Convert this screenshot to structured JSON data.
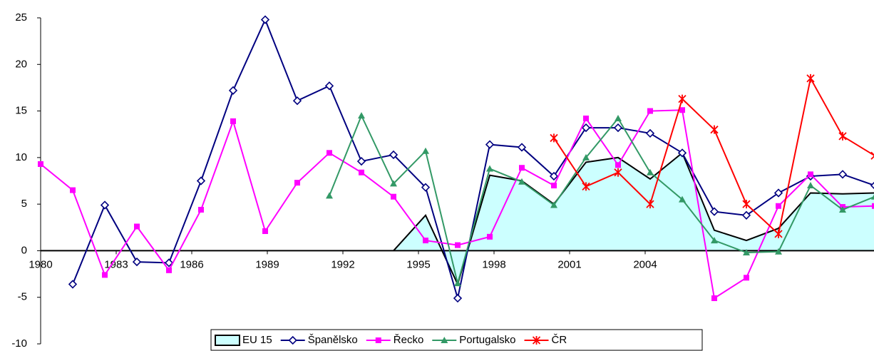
{
  "chart_data": {
    "type": "line",
    "categories": [
      "1980",
      null,
      null,
      "1983",
      null,
      null,
      "1986",
      null,
      null,
      "1989",
      null,
      null,
      "1992",
      null,
      null,
      "1995",
      null,
      null,
      "1998",
      null,
      null,
      "2001",
      null,
      null,
      "2004",
      null,
      null
    ],
    "ylim": [
      -10,
      25
    ],
    "yticks": [
      -10,
      -5,
      0,
      5,
      10,
      15,
      20,
      25
    ],
    "legend": "bottom",
    "series": [
      {
        "name": "EU 15",
        "color": "#ccffff",
        "style": "area",
        "values": [
          null,
          null,
          null,
          null,
          null,
          null,
          null,
          null,
          null,
          null,
          null,
          0,
          3.8,
          -3.6,
          8.1,
          7.5,
          5.0,
          9.5,
          10.0,
          7.7,
          10.5,
          2.2,
          1.1,
          2.4,
          6.2,
          6.1,
          6.2
        ]
      },
      {
        "name": "Španělsko",
        "color": "#000080",
        "marker": "diamond",
        "values": [
          null,
          -3.6,
          4.9,
          -1.2,
          -1.3,
          7.5,
          17.2,
          24.8,
          16.1,
          17.7,
          9.6,
          10.3,
          6.8,
          -5.1,
          11.4,
          11.1,
          8.0,
          13.2,
          13.2,
          12.6,
          10.5,
          4.2,
          3.8,
          6.2,
          8.0,
          8.2,
          7.0
        ]
      },
      {
        "name": "Řecko",
        "color": "#ff00ff",
        "marker": "square",
        "values": [
          9.3,
          6.5,
          -2.6,
          2.6,
          -2.1,
          4.4,
          13.9,
          2.1,
          7.3,
          10.5,
          8.4,
          5.8,
          1.1,
          0.6,
          1.5,
          8.9,
          7.0,
          14.2,
          9.2,
          15.0,
          15.1,
          -5.1,
          -2.9,
          4.8,
          8.2,
          4.7,
          4.8
        ]
      },
      {
        "name": "Portugalsko",
        "color": "#339966",
        "marker": "triangle",
        "values": [
          null,
          null,
          null,
          null,
          null,
          null,
          null,
          null,
          null,
          5.9,
          14.5,
          7.2,
          10.7,
          -3.5,
          8.8,
          7.4,
          4.9,
          10.0,
          14.2,
          8.4,
          5.5,
          1.1,
          -0.2,
          -0.1,
          7.0,
          4.4,
          5.8
        ]
      },
      {
        "name": "ČR",
        "color": "#ff0000",
        "marker": "star",
        "values": [
          null,
          null,
          null,
          null,
          null,
          null,
          null,
          null,
          null,
          null,
          null,
          null,
          null,
          null,
          null,
          null,
          12.1,
          6.9,
          8.4,
          5.0,
          16.3,
          13.0,
          5.0,
          1.8,
          18.5,
          12.3,
          10.2
        ]
      }
    ]
  }
}
